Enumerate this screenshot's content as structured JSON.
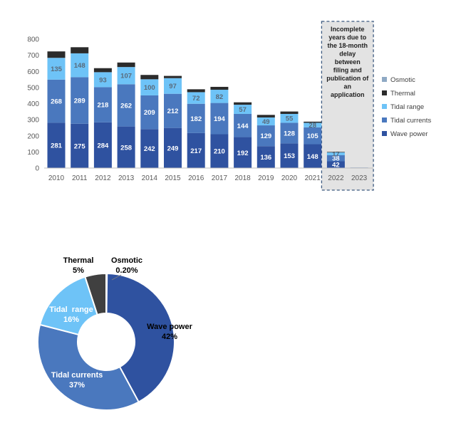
{
  "chart_data": [
    {
      "type": "bar",
      "stacked": true,
      "categories": [
        "2010",
        "2011",
        "2012",
        "2013",
        "2014",
        "2015",
        "2016",
        "2017",
        "2018",
        "2019",
        "2020",
        "2021",
        "2022",
        "2023"
      ],
      "ylim": [
        0,
        800
      ],
      "yticks": [
        0,
        100,
        200,
        300,
        400,
        500,
        600,
        700,
        800
      ],
      "grid": false,
      "legend_position": "right",
      "series": [
        {
          "name": "Wave power",
          "color": "#2F52A0",
          "values": [
            281,
            275,
            284,
            258,
            242,
            249,
            217,
            210,
            192,
            136,
            153,
            148,
            42,
            2
          ],
          "labels": [
            "281",
            "275",
            "284",
            "258",
            "242",
            "249",
            "217",
            "210",
            "192",
            "136",
            "153",
            "148",
            "42",
            ""
          ]
        },
        {
          "name": "Tidal currents",
          "color": "#4A78BE",
          "values": [
            268,
            289,
            218,
            262,
            209,
            212,
            182,
            194,
            144,
            129,
            128,
            105,
            38,
            1
          ],
          "labels": [
            "268",
            "289",
            "218",
            "262",
            "209",
            "212",
            "182",
            "194",
            "144",
            "129",
            "128",
            "105",
            "38",
            ""
          ]
        },
        {
          "name": "Tidal range",
          "color": "#6EC3F7",
          "values": [
            135,
            148,
            93,
            107,
            100,
            97,
            72,
            82,
            57,
            49,
            55,
            28,
            17,
            0
          ],
          "labels": [
            "135",
            "148",
            "93",
            "107",
            "100",
            "97",
            "72",
            "82",
            "57",
            "49",
            "55",
            "28",
            "17",
            ""
          ]
        },
        {
          "name": "Thermal",
          "color": "#2B2B2B",
          "values": [
            40,
            38,
            25,
            28,
            27,
            14,
            18,
            18,
            15,
            16,
            15,
            7,
            3,
            0
          ],
          "labels": [
            "",
            "",
            "",
            "",
            "",
            "",
            "",
            "",
            "",
            "",
            "",
            "",
            "",
            ""
          ]
        },
        {
          "name": "Osmotic",
          "color": "#8FA9C4",
          "values": [
            0,
            0,
            0,
            0,
            0,
            0,
            0,
            0,
            0,
            0,
            0,
            0,
            0,
            0
          ],
          "labels": [
            "",
            "",
            "",
            "",
            "",
            "",
            "",
            "",
            "",
            "",
            "",
            "",
            "",
            ""
          ]
        }
      ],
      "annotation": "Incomplete years due to the 18-month delay between filing and publication of an application",
      "annotation_categories": [
        "2022",
        "2023"
      ]
    },
    {
      "type": "pie",
      "donut": true,
      "slices": [
        {
          "label": "Osmotic",
          "value": 0.2,
          "display": "0.20%",
          "color": "#7F9CC2"
        },
        {
          "label": "Wave power",
          "value": 42,
          "display": "42%",
          "color": "#2F52A0"
        },
        {
          "label": "Tidal currents",
          "value": 37,
          "display": "37%",
          "color": "#4A78BE"
        },
        {
          "label": "Tidal  range",
          "value": 16,
          "display": "16%",
          "color": "#6EC3F7"
        },
        {
          "label": "Thermal",
          "value": 5,
          "display": "5%",
          "color": "#404040"
        }
      ]
    }
  ]
}
